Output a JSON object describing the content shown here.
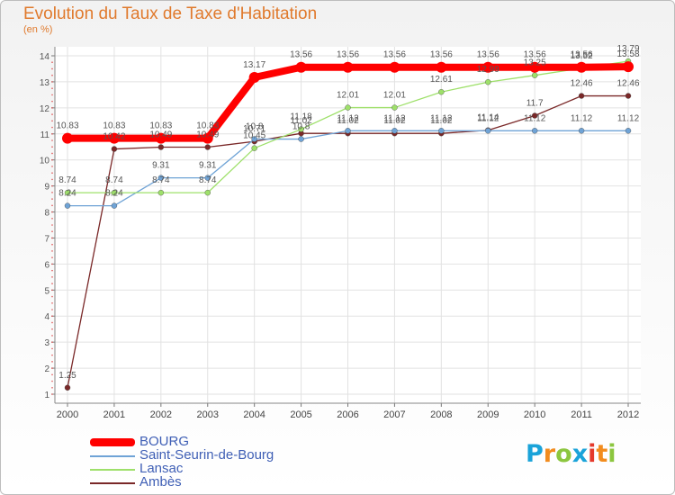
{
  "header": {
    "title": "Evolution du Taux de Taxe d'Habitation",
    "subtitle": "(en %)"
  },
  "brand": {
    "letters": [
      "P",
      "r",
      "o",
      "x",
      "i",
      "t",
      "i"
    ],
    "colors": [
      "#1aa3d9",
      "#f28c1e",
      "#8cc63f",
      "#1aa3d9",
      "#e5392b",
      "#f28c1e",
      "#8cc63f"
    ]
  },
  "chart_data": {
    "type": "line",
    "x": [
      2000,
      2001,
      2002,
      2003,
      2004,
      2005,
      2006,
      2007,
      2008,
      2009,
      2010,
      2011,
      2012
    ],
    "x_tick_labels": [
      "2000",
      "2001",
      "2002",
      "2003",
      "2004",
      "2005",
      "2006",
      "2007",
      "2008",
      "2009",
      "2010",
      "2011",
      "2012"
    ],
    "ylim": [
      1,
      14
    ],
    "y_ticks": [
      1,
      2,
      3,
      4,
      5,
      6,
      7,
      8,
      9,
      10,
      11,
      12,
      13,
      14
    ],
    "y_tick_labels": [
      "1",
      "2",
      "3",
      "4",
      "5",
      "6",
      "7",
      "8",
      "9",
      "10",
      "11",
      "12",
      "13",
      "14"
    ],
    "grid": true,
    "legend_position": "bottom-left",
    "series": [
      {
        "name": "BOURG",
        "color": "#ff0000",
        "values": [
          10.83,
          10.83,
          10.83,
          10.83,
          13.17,
          13.56,
          13.56,
          13.56,
          13.56,
          13.56,
          13.56,
          13.56,
          13.58
        ],
        "labels": [
          "10.83",
          "10.83",
          "10.83",
          "10.83",
          "13.17",
          "13.56",
          "13.56",
          "13.56",
          "13.56",
          "13.56",
          "13.56",
          "13.56",
          "13.58"
        ]
      },
      {
        "name": "Saint-Seurin-de-Bourg",
        "color": "#6fa3d6",
        "values": [
          8.24,
          8.24,
          9.31,
          9.31,
          10.8,
          10.8,
          11.12,
          11.12,
          11.12,
          11.12,
          11.12,
          11.12,
          11.12
        ],
        "labels": [
          "8.24",
          "8.24",
          "9.31",
          "9.31",
          "10.8",
          "10.8",
          "11.12",
          "11.12",
          "11.12",
          "11.12",
          "11.12",
          "11.12",
          "11.12"
        ]
      },
      {
        "name": "Lansac",
        "color": "#9ee06a",
        "values": [
          8.74,
          8.74,
          8.74,
          8.74,
          10.45,
          11.18,
          12.01,
          12.01,
          12.61,
          12.99,
          13.25,
          13.52,
          13.79
        ],
        "labels": [
          "8.74",
          "8.74",
          "8.74",
          "8.74",
          "10.45",
          "11.18",
          "12.01",
          "12.01",
          "12.61",
          "12.99",
          "13.25",
          "13.52",
          "13.79"
        ]
      },
      {
        "name": "Ambès",
        "color": "#7a2828",
        "values": [
          1.25,
          10.42,
          10.49,
          10.49,
          10.71,
          11.02,
          11.02,
          11.02,
          11.02,
          11.14,
          11.7,
          12.46,
          12.46
        ],
        "labels": [
          "1.25",
          "10.42",
          "10.49",
          "10.49",
          "10.71",
          "11.02",
          "11.02",
          "11.02",
          "11.02",
          "11.14",
          "11.7",
          "12.46",
          "12.46"
        ]
      }
    ]
  }
}
